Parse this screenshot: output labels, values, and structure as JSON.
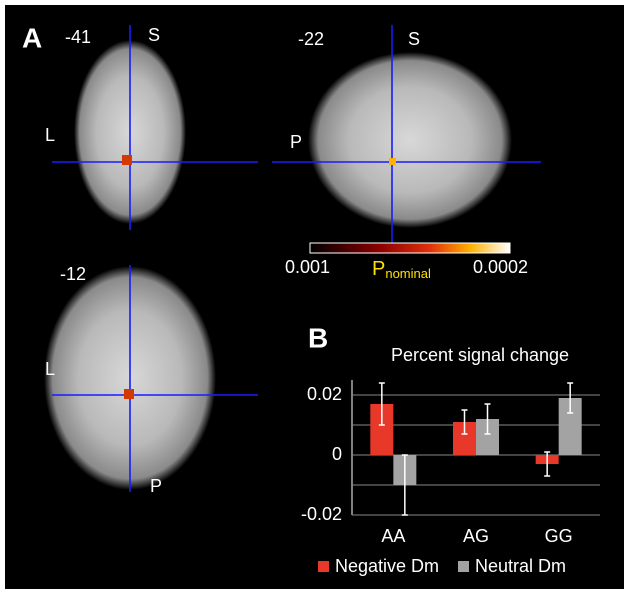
{
  "panel_a": {
    "label": "A",
    "coronal": {
      "slice": "-41",
      "top": "S",
      "left": "L"
    },
    "sagittal": {
      "slice": "-22",
      "top": "S",
      "left": "P"
    },
    "axial": {
      "slice": "-12",
      "left": "L",
      "bottom": "P"
    },
    "colorbar": {
      "min_label": "0.001",
      "max_label": "0.0002",
      "title": "P",
      "subscript": "nominal"
    }
  },
  "chart_data": {
    "type": "bar",
    "panel_label": "B",
    "title": "Percent signal change",
    "categories": [
      "AA",
      "AG",
      "GG"
    ],
    "series": [
      {
        "name": "Negative Dm",
        "color": "#e8382a",
        "values": [
          0.017,
          0.011,
          -0.003
        ],
        "errors": [
          0.007,
          0.004,
          0.004
        ]
      },
      {
        "name": "Neutral Dm",
        "color": "#a3a3a3",
        "values": [
          -0.01,
          0.012,
          0.019
        ],
        "errors": [
          0.01,
          0.005,
          0.005
        ]
      }
    ],
    "ylim": [
      -0.02,
      0.025
    ],
    "yticks": [
      -0.02,
      0,
      0.02
    ],
    "minor_yticks": [
      -0.01,
      0.01
    ],
    "grid": true,
    "legend": "bottom"
  }
}
